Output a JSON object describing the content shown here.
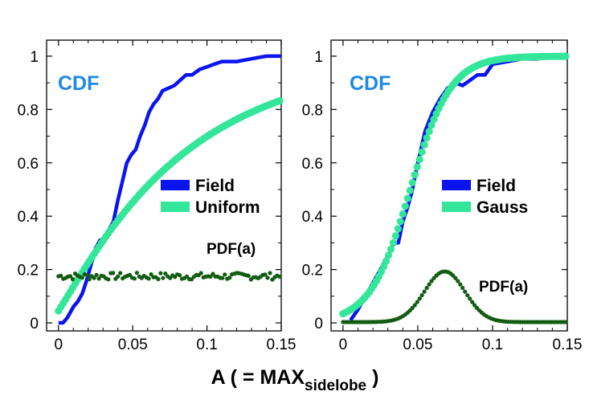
{
  "chart_data": [
    {
      "type": "line",
      "panel": "left",
      "annotation": "CDF",
      "xlim": [
        -0.008,
        0.15
      ],
      "ylim": [
        -0.03,
        1.06
      ],
      "xticks": [
        0,
        0.05,
        0.1,
        0.15
      ],
      "xtick_labels": [
        "0",
        "0.05",
        "0.1",
        "0.15"
      ],
      "yticks": [
        0,
        0.2,
        0.4,
        0.6,
        0.8,
        1
      ],
      "ytick_labels": [
        "0",
        "0.2",
        "0.4",
        "0.6",
        "0.8",
        "1"
      ],
      "pdf_label": "PDF(a)",
      "series": [
        {
          "name": "Field",
          "kind": "step-line",
          "color": "#0a14ee",
          "x": [
            0,
            0.003,
            0.006,
            0.01,
            0.013,
            0.016,
            0.019,
            0.022,
            0.025,
            0.028,
            0.031,
            0.034,
            0.037,
            0.04,
            0.043,
            0.046,
            0.049,
            0.052,
            0.055,
            0.058,
            0.061,
            0.064,
            0.067,
            0.07,
            0.074,
            0.078,
            0.082,
            0.086,
            0.09,
            0.095,
            0.1,
            0.105,
            0.11,
            0.12,
            0.13,
            0.14,
            0.15
          ],
          "y": [
            0,
            0.0,
            0.02,
            0.06,
            0.08,
            0.11,
            0.16,
            0.22,
            0.28,
            0.31,
            0.31,
            0.35,
            0.38,
            0.46,
            0.53,
            0.6,
            0.63,
            0.65,
            0.7,
            0.74,
            0.79,
            0.82,
            0.84,
            0.87,
            0.88,
            0.89,
            0.91,
            0.93,
            0.93,
            0.95,
            0.96,
            0.97,
            0.98,
            0.98,
            0.99,
            1.0,
            1.0
          ]
        },
        {
          "name": "Uniform",
          "kind": "dots",
          "color": "#33e699",
          "formula": "1-exp(-12*x)",
          "x_start": 0,
          "x_end": 0.15,
          "x_step": 0.0016
        },
        {
          "name": "PDF(a)",
          "kind": "dots-small",
          "color": "#125c12",
          "base": 0.175,
          "jitter": 0.013,
          "x_start": 0,
          "x_end": 0.15,
          "x_step": 0.0016
        }
      ],
      "legend": [
        {
          "label": "Field",
          "color": "#0a14ee"
        },
        {
          "label": "Uniform",
          "color": "#33e699"
        }
      ]
    },
    {
      "type": "line",
      "panel": "right",
      "annotation": "CDF",
      "xlim": [
        -0.008,
        0.15
      ],
      "ylim": [
        -0.03,
        1.06
      ],
      "xticks": [
        0,
        0.05,
        0.1,
        0.15
      ],
      "xtick_labels": [
        "0",
        "0.05",
        "0.1",
        "0.15"
      ],
      "yticks": [
        0,
        0.2,
        0.4,
        0.6,
        0.8,
        1
      ],
      "ytick_labels": [
        "0",
        "0.2",
        "0.4",
        "0.6",
        "0.8",
        "1"
      ],
      "pdf_label": "PDF(a)",
      "series": [
        {
          "name": "Field",
          "kind": "step-line",
          "color": "#0a14ee",
          "x": [
            0.005,
            0.01,
            0.015,
            0.02,
            0.025,
            0.03,
            0.034,
            0.037,
            0.04,
            0.043,
            0.046,
            0.05,
            0.055,
            0.06,
            0.065,
            0.07,
            0.075,
            0.08,
            0.085,
            0.09,
            0.095,
            0.1,
            0.11,
            0.12,
            0.13,
            0.14,
            0.15
          ],
          "y": [
            0.01,
            0.05,
            0.1,
            0.15,
            0.2,
            0.25,
            0.3,
            0.3,
            0.38,
            0.43,
            0.49,
            0.6,
            0.72,
            0.79,
            0.84,
            0.88,
            0.9,
            0.89,
            0.91,
            0.93,
            0.93,
            0.97,
            0.98,
            0.99,
            0.99,
            1.0,
            1.0
          ]
        },
        {
          "name": "Gauss",
          "kind": "dots",
          "color": "#33e699",
          "formula": "logistic",
          "x_start": 0.0,
          "x_end": 0.15,
          "x_step": 0.0016
        },
        {
          "name": "PDF(a)",
          "kind": "dots-small",
          "color": "#125c12",
          "formula": "gauss",
          "peak": 0.19,
          "center": 0.068,
          "width": 0.0135,
          "x_start": 0,
          "x_end": 0.15,
          "x_step": 0.0016
        }
      ],
      "legend": [
        {
          "label": "Field",
          "color": "#0a14ee"
        },
        {
          "label": "Gauss",
          "color": "#33e699"
        }
      ]
    }
  ],
  "xlabel": {
    "main": "A ( = MAX",
    "subscript": "sidelobe",
    "close": " )"
  },
  "colors": {
    "cdf_annotation": "#1e88e5",
    "axis": "#000000"
  }
}
